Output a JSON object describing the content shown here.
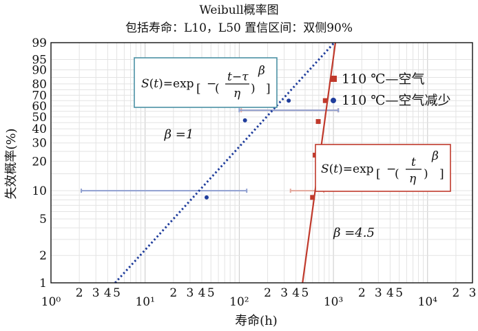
{
  "chart_data": {
    "type": "scatter",
    "title": "Weibull概率图",
    "subtitle": "包括寿命：L10，L50  置信区间：双侧90%",
    "xlabel": "寿命(h)",
    "ylabel": "失效概率(%)",
    "x_scale": "log",
    "y_scale": "weibull",
    "xlim": [
      1,
      30000
    ],
    "ylim": [
      1,
      99
    ],
    "x_major_ticks": [
      {
        "value": 1,
        "label": "10⁰"
      },
      {
        "value": 10,
        "label": "10¹"
      },
      {
        "value": 100,
        "label": "10²"
      },
      {
        "value": 1000,
        "label": "10³"
      },
      {
        "value": 10000,
        "label": "10⁴"
      }
    ],
    "x_minor_ticks": [
      {
        "value": 2,
        "label": "2"
      },
      {
        "value": 3,
        "label": "3"
      },
      {
        "value": 4,
        "label": "4"
      },
      {
        "value": 5,
        "label": "5"
      },
      {
        "value": 20,
        "label": "2"
      },
      {
        "value": 30,
        "label": "3"
      },
      {
        "value": 40,
        "label": "4"
      },
      {
        "value": 50,
        "label": "5"
      },
      {
        "value": 200,
        "label": "2"
      },
      {
        "value": 300,
        "label": "3"
      },
      {
        "value": 400,
        "label": "4"
      },
      {
        "value": 500,
        "label": "5"
      },
      {
        "value": 2000,
        "label": "2"
      },
      {
        "value": 3000,
        "label": "3"
      },
      {
        "value": 4000,
        "label": "4"
      },
      {
        "value": 5000,
        "label": "5"
      },
      {
        "value": 20000,
        "label": "2"
      },
      {
        "value": 30000,
        "label": "3"
      }
    ],
    "y_ticks": [
      1,
      2,
      5,
      10,
      20,
      30,
      40,
      50,
      60,
      70,
      80,
      90,
      95,
      99
    ],
    "grid": true,
    "series": [
      {
        "name": "110 ℃—空气",
        "color": "#c0392b",
        "marker": "square",
        "points": [
          [
            600,
            8.5
          ],
          [
            640,
            23
          ],
          [
            690,
            46
          ],
          [
            820,
            65
          ]
        ],
        "fit_line": {
          "beta": 4.5,
          "points": [
            [
              470,
              1
            ],
            [
              1050,
              99
            ]
          ]
        },
        "interval": [
          {
            "y": 10,
            "x_low": 350,
            "x_high": 790
          },
          {
            "y": 56,
            "x_low": 105,
            "x_high": 1120
          }
        ]
      },
      {
        "name": "110 ℃—空气减少",
        "color": "#1f3d9c",
        "marker": "circle",
        "points": [
          [
            45,
            8.5
          ],
          [
            115,
            47
          ],
          [
            335,
            65
          ]
        ],
        "fit_line": {
          "beta": 1,
          "points": [
            [
              4.8,
              1
            ],
            [
              1020,
              99
            ]
          ]
        },
        "interval": [
          {
            "y": 10,
            "x_low": 2.1,
            "x_high": 120
          },
          {
            "y": 56,
            "x_low": 100,
            "x_high": 1130
          }
        ]
      }
    ],
    "annotations": [
      {
        "id": "beta1",
        "text": "β =1",
        "x": 16,
        "y": 33
      },
      {
        "id": "beta2",
        "text": "β =4.5",
        "x": 1000,
        "y": 3.2
      }
    ],
    "formulas": [
      {
        "id": "f1",
        "text": "S(t)=exp[−((t−τ)/η)^β]",
        "color": "#4a90a4"
      },
      {
        "id": "f2",
        "text": "S(t)=exp[−(t/η)^β]",
        "color": "#c0392b"
      }
    ],
    "legend": "right"
  }
}
